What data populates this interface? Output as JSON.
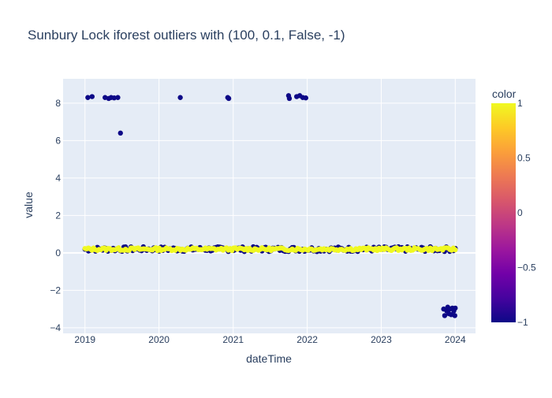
{
  "chart_data": {
    "type": "scatter",
    "title": "Sunbury Lock iforest outliers with (100, 0.1, False, -1)",
    "xlabel": "dateTime",
    "ylabel": "value",
    "xlim": [
      "2018-09-15",
      "2024-04-10"
    ],
    "ylim": [
      -4.3,
      9.3
    ],
    "x_ticks": [
      "2019",
      "2020",
      "2021",
      "2022",
      "2023",
      "2024"
    ],
    "y_ticks": [
      -4,
      -2,
      0,
      2,
      4,
      6,
      8
    ],
    "grid": true,
    "colorbar": {
      "title": "color",
      "range": [
        -1,
        1
      ],
      "ticks": [
        "1",
        "0.5",
        "0",
        "−0.5",
        "−1"
      ],
      "tick_values": [
        1,
        0.5,
        0,
        -0.5,
        -1
      ],
      "colorscale": [
        "#0d0887",
        "#46039f",
        "#7201a8",
        "#9c179e",
        "#bd3786",
        "#d8576b",
        "#ed7953",
        "#fb9f3a",
        "#fdca26",
        "#f0f921"
      ]
    },
    "outliers_high": [
      {
        "x": "2019-01-15",
        "y": 8.3
      },
      {
        "x": "2019-02-05",
        "y": 8.35
      },
      {
        "x": "2019-04-10",
        "y": 8.3
      },
      {
        "x": "2019-04-28",
        "y": 8.25
      },
      {
        "x": "2019-05-10",
        "y": 8.3
      },
      {
        "x": "2019-05-25",
        "y": 8.28
      },
      {
        "x": "2019-06-12",
        "y": 8.3
      },
      {
        "x": "2019-06-25",
        "y": 6.4
      },
      {
        "x": "2020-04-15",
        "y": 8.3
      },
      {
        "x": "2020-12-05",
        "y": 8.3
      },
      {
        "x": "2020-12-10",
        "y": 8.25
      },
      {
        "x": "2021-10-01",
        "y": 8.4
      },
      {
        "x": "2021-10-05",
        "y": 8.25
      },
      {
        "x": "2021-11-10",
        "y": 8.35
      },
      {
        "x": "2021-11-25",
        "y": 8.4
      },
      {
        "x": "2021-12-10",
        "y": 8.3
      },
      {
        "x": "2021-12-25",
        "y": 8.28
      }
    ],
    "outliers_low": [
      {
        "x": "2023-11-05",
        "y": -3.0
      },
      {
        "x": "2023-11-10",
        "y": -3.35
      },
      {
        "x": "2023-11-20",
        "y": -3.1
      },
      {
        "x": "2023-11-25",
        "y": -2.9
      },
      {
        "x": "2023-12-01",
        "y": -3.25
      },
      {
        "x": "2023-12-05",
        "y": -3.0
      },
      {
        "x": "2023-12-12",
        "y": -3.3
      },
      {
        "x": "2023-12-18",
        "y": -2.95
      },
      {
        "x": "2023-12-25",
        "y": -3.1
      },
      {
        "x": "2023-12-30",
        "y": -3.35
      },
      {
        "x": "2024-01-01",
        "y": -2.95
      }
    ],
    "baseline_band": {
      "start": "2019-01-01",
      "end": "2024-01-01",
      "center": 0.2,
      "spread": 0.13,
      "count": 210
    }
  }
}
